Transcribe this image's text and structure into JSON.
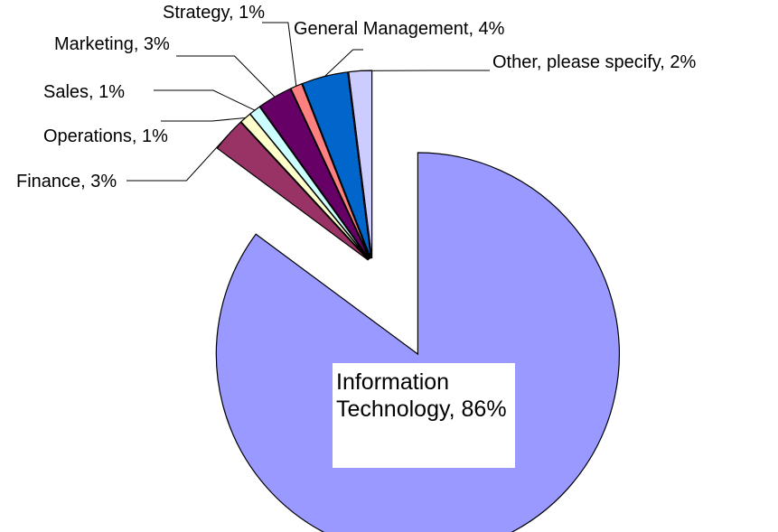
{
  "chart_data": {
    "type": "pie",
    "categories": [
      "Information Technology, 86%",
      "Finance, 3%",
      "Operations, 1%",
      "Sales, 1%",
      "Marketing, 3%",
      "Strategy, 1%",
      "General Management, 4%",
      "Other, please specify, 2%"
    ],
    "values": [
      86,
      3,
      1,
      1,
      3,
      1,
      4,
      2
    ],
    "colors": [
      "#9999ff",
      "#993366",
      "#ffffcc",
      "#ccffff",
      "#660066",
      "#ff8080",
      "#0066cc",
      "#ccccff"
    ]
  }
}
